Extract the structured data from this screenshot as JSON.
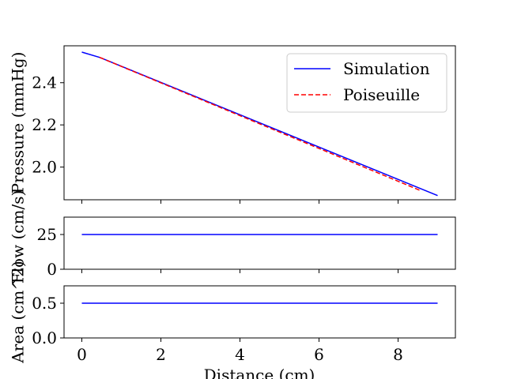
{
  "chart_data": [
    {
      "type": "line",
      "ylabel": "Pressure (mmHg)",
      "xlim": [
        -0.45,
        9.45
      ],
      "ylim": [
        1.845,
        2.575
      ],
      "yticks": [
        2.0,
        2.2,
        2.4
      ],
      "ytick_labels": [
        "2.0",
        "2.2",
        "2.4"
      ],
      "xticks": [
        0,
        2,
        4,
        6,
        8
      ],
      "legend": "upper right",
      "series": [
        {
          "name": "Simulation",
          "color": "#0000ff",
          "style": "solid",
          "x": [
            0,
            0.45,
            9.0
          ],
          "y": [
            2.545,
            2.52,
            1.865
          ]
        },
        {
          "name": "Poiseuille",
          "color": "#ff0000",
          "style": "dashed",
          "x": [
            0.45,
            8.55
          ],
          "y": [
            2.52,
            1.89
          ]
        }
      ]
    },
    {
      "type": "line",
      "ylabel": "Flow (cm/s)",
      "xlim": [
        -0.45,
        9.45
      ],
      "ylim": [
        0,
        37.5
      ],
      "yticks": [
        0,
        25
      ],
      "ytick_labels": [
        "0",
        "25"
      ],
      "xticks": [
        0,
        2,
        4,
        6,
        8
      ],
      "series": [
        {
          "color": "#0000ff",
          "style": "solid",
          "x": [
            0,
            9.0
          ],
          "y": [
            25,
            25
          ]
        }
      ]
    },
    {
      "type": "line",
      "xlabel": "Distance (cm)",
      "ylabel": "Area (cm^2)",
      "xlim": [
        -0.45,
        9.45
      ],
      "ylim": [
        0,
        0.75
      ],
      "yticks": [
        0.0,
        0.5
      ],
      "ytick_labels": [
        "0.0",
        "0.5"
      ],
      "xticks": [
        0,
        2,
        4,
        6,
        8
      ],
      "xtick_labels": [
        "0",
        "2",
        "4",
        "6",
        "8"
      ],
      "series": [
        {
          "color": "#0000ff",
          "style": "solid",
          "x": [
            0,
            9.0
          ],
          "y": [
            0.5,
            0.5
          ]
        }
      ]
    }
  ]
}
